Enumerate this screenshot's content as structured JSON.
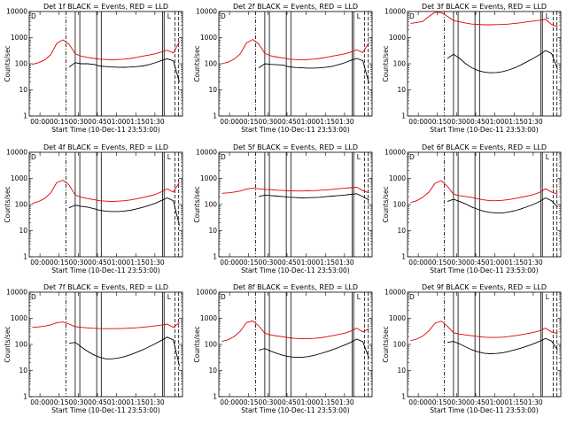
{
  "colors": {
    "events": "#000000",
    "lld": "#e00000",
    "axis": "#000000"
  },
  "chart_data": [
    {
      "type": "line",
      "title": "Det 1f BLACK = Events, RED = LLD",
      "xlabel": "Start Time (10-Dec-11 23:53:00)",
      "ylabel": "Counts/sec",
      "x_ticks": [
        "00:00",
        "00:15",
        "00:30",
        "00:45",
        "01:00",
        "01:15",
        "01:30"
      ],
      "y_ticks": [
        "1",
        "10",
        "100",
        "1000",
        "10000"
      ],
      "ylim": [
        1,
        10000
      ],
      "y_scale": "log",
      "grid": false,
      "corner_labels": [
        "D",
        "L"
      ],
      "series": [
        {
          "color": "#000000",
          "values": [
            null,
            null,
            null,
            null,
            null,
            null,
            75,
            110,
            100,
            100,
            95,
            82,
            78,
            75,
            74,
            73,
            75,
            78,
            82,
            92,
            108,
            130,
            155,
            130,
            20
          ]
        },
        {
          "color": "#e00000",
          "values": [
            95,
            110,
            140,
            220,
            600,
            820,
            560,
            240,
            195,
            175,
            160,
            150,
            145,
            140,
            145,
            150,
            160,
            175,
            195,
            215,
            240,
            280,
            330,
            260,
            700
          ]
        }
      ]
    },
    {
      "type": "line",
      "title": "Det 2f BLACK = Events, RED = LLD",
      "xlabel": "Start Time (10-Dec-11 23:53:00)",
      "ylabel": "Counts/sec",
      "x_ticks": [
        "00:00",
        "00:15",
        "00:30",
        "00:45",
        "01:00",
        "01:15",
        "01:30"
      ],
      "y_ticks": [
        "1",
        "10",
        "100",
        "1000",
        "10000"
      ],
      "ylim": [
        1,
        10000
      ],
      "y_scale": "log",
      "grid": false,
      "corner_labels": [
        "D",
        "L"
      ],
      "series": [
        {
          "color": "#000000",
          "values": [
            null,
            null,
            null,
            null,
            null,
            null,
            70,
            100,
            95,
            92,
            88,
            76,
            72,
            70,
            68,
            68,
            70,
            74,
            80,
            92,
            108,
            135,
            160,
            130,
            18
          ]
        },
        {
          "color": "#e00000",
          "values": [
            100,
            115,
            150,
            240,
            620,
            850,
            580,
            250,
            200,
            180,
            165,
            150,
            145,
            140,
            145,
            150,
            160,
            175,
            195,
            215,
            240,
            280,
            340,
            270,
            650
          ]
        }
      ]
    },
    {
      "type": "line",
      "title": "Det 3f BLACK = Events, RED = LLD",
      "xlabel": "Start Time (10-Dec-11 23:53:00)",
      "ylabel": "Counts/sec",
      "x_ticks": [
        "00:00",
        "00:15",
        "00:30",
        "00:45",
        "01:00",
        "01:15",
        "01:30"
      ],
      "y_ticks": [
        "1",
        "10",
        "100",
        "1000",
        "10000"
      ],
      "ylim": [
        1,
        10000
      ],
      "y_scale": "log",
      "grid": false,
      "corner_labels": [
        "D",
        "L"
      ],
      "series": [
        {
          "color": "#000000",
          "values": [
            null,
            null,
            null,
            null,
            null,
            null,
            160,
            230,
            160,
            100,
            70,
            55,
            48,
            45,
            46,
            50,
            58,
            70,
            90,
            120,
            160,
            220,
            320,
            250,
            60
          ]
        },
        {
          "color": "#e00000",
          "values": [
            3500,
            3800,
            4200,
            6500,
            9500,
            9000,
            6500,
            4500,
            4000,
            3600,
            3300,
            3200,
            3100,
            3100,
            3150,
            3200,
            3300,
            3500,
            3700,
            4000,
            4300,
            4600,
            5000,
            3200,
            2600
          ]
        }
      ]
    },
    {
      "type": "line",
      "title": "Det 4f BLACK = Events, RED = LLD",
      "xlabel": "Start Time (10-Dec-11 23:53:00)",
      "ylabel": "Counts/sec",
      "x_ticks": [
        "00:00",
        "00:15",
        "00:30",
        "00:45",
        "01:00",
        "01:15",
        "01:30"
      ],
      "y_ticks": [
        "1",
        "10",
        "100",
        "1000",
        "10000"
      ],
      "ylim": [
        1,
        10000
      ],
      "y_scale": "log",
      "grid": false,
      "corner_labels": [
        "D",
        "L"
      ],
      "series": [
        {
          "color": "#000000",
          "values": [
            null,
            null,
            null,
            null,
            null,
            null,
            75,
            95,
            85,
            80,
            70,
            60,
            56,
            54,
            54,
            56,
            60,
            68,
            78,
            92,
            110,
            140,
            180,
            140,
            16
          ]
        },
        {
          "color": "#e00000",
          "values": [
            110,
            130,
            170,
            280,
            700,
            850,
            560,
            230,
            190,
            170,
            155,
            140,
            135,
            130,
            135,
            140,
            150,
            165,
            185,
            210,
            240,
            300,
            400,
            300,
            700
          ]
        }
      ]
    },
    {
      "type": "line",
      "title": "Det 5f BLACK = Events, RED = LLD",
      "xlabel": "Start Time (10-Dec-11 23:53:00)",
      "ylabel": "Counts/sec",
      "x_ticks": [
        "00:00",
        "00:15",
        "00:30",
        "00:45",
        "01:00",
        "01:15",
        "01:30"
      ],
      "y_ticks": [
        "1",
        "10",
        "100",
        "1000",
        "10000"
      ],
      "ylim": [
        1,
        10000
      ],
      "y_scale": "log",
      "grid": false,
      "corner_labels": [
        "D",
        "L"
      ],
      "series": [
        {
          "color": "#000000",
          "values": [
            null,
            null,
            null,
            null,
            null,
            null,
            200,
            230,
            220,
            210,
            200,
            190,
            185,
            180,
            182,
            185,
            190,
            200,
            210,
            220,
            230,
            245,
            260,
            200,
            150
          ]
        },
        {
          "color": "#e00000",
          "values": [
            270,
            280,
            300,
            330,
            390,
            420,
            400,
            380,
            370,
            355,
            345,
            335,
            330,
            330,
            335,
            340,
            350,
            365,
            380,
            400,
            420,
            440,
            460,
            340,
            280
          ]
        }
      ]
    },
    {
      "type": "line",
      "title": "Det 6f BLACK = Events, RED = LLD",
      "xlabel": "Start Time (10-Dec-11 23:53:00)",
      "ylabel": "Counts/sec",
      "x_ticks": [
        "00:00",
        "00:15",
        "00:30",
        "00:45",
        "01:00",
        "01:15",
        "01:30"
      ],
      "y_ticks": [
        "1",
        "10",
        "100",
        "1000",
        "10000"
      ],
      "ylim": [
        1,
        10000
      ],
      "y_scale": "log",
      "grid": false,
      "corner_labels": [
        "D",
        "L"
      ],
      "series": [
        {
          "color": "#000000",
          "values": [
            null,
            null,
            null,
            null,
            null,
            null,
            130,
            160,
            130,
            105,
            80,
            65,
            55,
            50,
            48,
            48,
            52,
            58,
            68,
            82,
            100,
            130,
            180,
            140,
            80
          ]
        },
        {
          "color": "#e00000",
          "values": [
            120,
            140,
            190,
            300,
            650,
            820,
            500,
            250,
            220,
            200,
            185,
            165,
            150,
            140,
            140,
            145,
            155,
            170,
            190,
            210,
            240,
            290,
            400,
            300,
            250
          ]
        }
      ]
    },
    {
      "type": "line",
      "title": "Det 7f BLACK = Events, RED = LLD",
      "xlabel": "Start Time (10-Dec-11 23:53:00)",
      "ylabel": "Counts/sec",
      "x_ticks": [
        "00:00",
        "00:15",
        "00:30",
        "00:45",
        "01:00",
        "01:15",
        "01:30"
      ],
      "y_ticks": [
        "1",
        "10",
        "100",
        "1000",
        "10000"
      ],
      "ylim": [
        1,
        10000
      ],
      "y_scale": "log",
      "grid": false,
      "corner_labels": [
        "D",
        "L"
      ],
      "series": [
        {
          "color": "#000000",
          "values": [
            null,
            null,
            null,
            null,
            null,
            null,
            110,
            120,
            80,
            55,
            40,
            32,
            28,
            28,
            30,
            34,
            40,
            50,
            62,
            80,
            105,
            140,
            190,
            150,
            15
          ]
        },
        {
          "color": "#e00000",
          "values": [
            450,
            470,
            500,
            560,
            680,
            720,
            600,
            480,
            450,
            430,
            415,
            405,
            400,
            400,
            405,
            410,
            420,
            435,
            455,
            480,
            510,
            550,
            600,
            450,
            700
          ]
        }
      ]
    },
    {
      "type": "line",
      "title": "Det 8f BLACK = Events, RED = LLD",
      "xlabel": "Start Time (10-Dec-11 23:53:00)",
      "ylabel": "Counts/sec",
      "x_ticks": [
        "00:00",
        "00:15",
        "00:30",
        "00:45",
        "01:00",
        "01:15",
        "01:30"
      ],
      "y_ticks": [
        "1",
        "10",
        "100",
        "1000",
        "10000"
      ],
      "ylim": [
        1,
        10000
      ],
      "y_scale": "log",
      "grid": false,
      "corner_labels": [
        "D",
        "L"
      ],
      "series": [
        {
          "color": "#000000",
          "values": [
            null,
            null,
            null,
            null,
            null,
            null,
            60,
            70,
            55,
            45,
            38,
            34,
            32,
            32,
            34,
            38,
            44,
            52,
            62,
            76,
            95,
            120,
            160,
            125,
            30
          ]
        },
        {
          "color": "#e00000",
          "values": [
            130,
            150,
            200,
            320,
            680,
            800,
            520,
            270,
            230,
            210,
            195,
            180,
            170,
            165,
            165,
            170,
            180,
            195,
            215,
            240,
            270,
            320,
            420,
            300,
            400
          ]
        }
      ]
    },
    {
      "type": "line",
      "title": "Det 9f BLACK = Events, RED = LLD",
      "xlabel": "Start Time (10-Dec-11 23:53:00)",
      "ylabel": "Counts/sec",
      "x_ticks": [
        "00:00",
        "00:15",
        "00:30",
        "00:45",
        "01:00",
        "01:15",
        "01:30"
      ],
      "y_ticks": [
        "1",
        "10",
        "100",
        "1000",
        "10000"
      ],
      "ylim": [
        1,
        10000
      ],
      "y_scale": "log",
      "grid": false,
      "corner_labels": [
        "D",
        "L"
      ],
      "series": [
        {
          "color": "#000000",
          "values": [
            null,
            null,
            null,
            null,
            null,
            null,
            120,
            130,
            105,
            80,
            62,
            52,
            46,
            44,
            45,
            48,
            54,
            62,
            72,
            86,
            105,
            130,
            170,
            135,
            60
          ]
        },
        {
          "color": "#e00000",
          "values": [
            140,
            160,
            210,
            330,
            650,
            780,
            500,
            280,
            250,
            230,
            215,
            200,
            190,
            185,
            185,
            190,
            200,
            215,
            235,
            260,
            290,
            330,
            420,
            300,
            260
          ]
        }
      ]
    }
  ]
}
